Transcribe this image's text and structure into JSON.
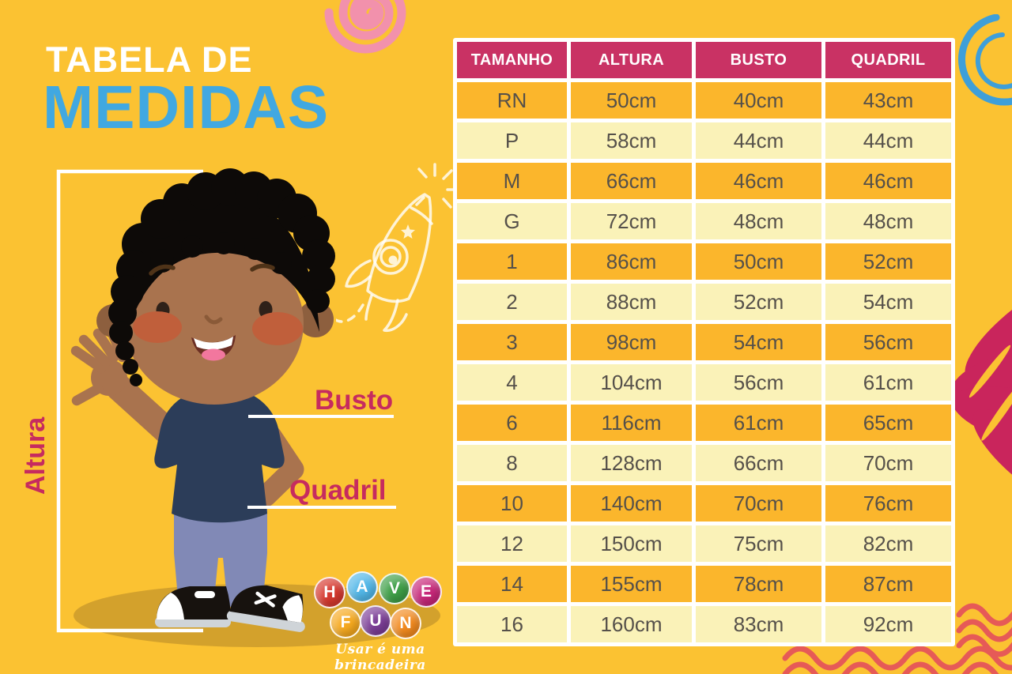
{
  "title": {
    "line1": "TABELA DE",
    "line2": "MEDIDAS"
  },
  "measure_labels": {
    "height": "Altura",
    "bust": "Busto",
    "hip": "Quadril"
  },
  "table": {
    "headers": [
      "TAMANHO",
      "ALTURA",
      "BUSTO",
      "QUADRIL"
    ],
    "rows": [
      [
        "RN",
        "50cm",
        "40cm",
        "43cm"
      ],
      [
        "P",
        "58cm",
        "44cm",
        "44cm"
      ],
      [
        "M",
        "66cm",
        "46cm",
        "46cm"
      ],
      [
        "G",
        "72cm",
        "48cm",
        "48cm"
      ],
      [
        "1",
        "86cm",
        "50cm",
        "52cm"
      ],
      [
        "2",
        "88cm",
        "52cm",
        "54cm"
      ],
      [
        "3",
        "98cm",
        "54cm",
        "56cm"
      ],
      [
        "4",
        "104cm",
        "56cm",
        "61cm"
      ],
      [
        "6",
        "116cm",
        "61cm",
        "65cm"
      ],
      [
        "8",
        "128cm",
        "66cm",
        "70cm"
      ],
      [
        "10",
        "140cm",
        "70cm",
        "76cm"
      ],
      [
        "12",
        "150cm",
        "75cm",
        "82cm"
      ],
      [
        "14",
        "155cm",
        "78cm",
        "87cm"
      ],
      [
        "16",
        "160cm",
        "83cm",
        "92cm"
      ]
    ]
  },
  "chart_data": {
    "type": "table",
    "title": "Tabela de Medidas",
    "columns": [
      "TAMANHO",
      "ALTURA",
      "BUSTO",
      "QUADRIL"
    ],
    "rows": [
      {
        "tamanho": "RN",
        "altura_cm": 50,
        "busto_cm": 40,
        "quadril_cm": 43
      },
      {
        "tamanho": "P",
        "altura_cm": 58,
        "busto_cm": 44,
        "quadril_cm": 44
      },
      {
        "tamanho": "M",
        "altura_cm": 66,
        "busto_cm": 46,
        "quadril_cm": 46
      },
      {
        "tamanho": "G",
        "altura_cm": 72,
        "busto_cm": 48,
        "quadril_cm": 48
      },
      {
        "tamanho": "1",
        "altura_cm": 86,
        "busto_cm": 50,
        "quadril_cm": 52
      },
      {
        "tamanho": "2",
        "altura_cm": 88,
        "busto_cm": 52,
        "quadril_cm": 54
      },
      {
        "tamanho": "3",
        "altura_cm": 98,
        "busto_cm": 54,
        "quadril_cm": 56
      },
      {
        "tamanho": "4",
        "altura_cm": 104,
        "busto_cm": 56,
        "quadril_cm": 61
      },
      {
        "tamanho": "6",
        "altura_cm": 116,
        "busto_cm": 61,
        "quadril_cm": 65
      },
      {
        "tamanho": "8",
        "altura_cm": 128,
        "busto_cm": 66,
        "quadril_cm": 70
      },
      {
        "tamanho": "10",
        "altura_cm": 140,
        "busto_cm": 70,
        "quadril_cm": 76
      },
      {
        "tamanho": "12",
        "altura_cm": 150,
        "busto_cm": 75,
        "quadril_cm": 82
      },
      {
        "tamanho": "14",
        "altura_cm": 155,
        "busto_cm": 78,
        "quadril_cm": 87
      },
      {
        "tamanho": "16",
        "altura_cm": 160,
        "busto_cm": 83,
        "quadril_cm": 92
      }
    ]
  },
  "logo": {
    "letters": [
      {
        "char": "H",
        "color": "#D6382E"
      },
      {
        "char": "A",
        "color": "#52B7E8"
      },
      {
        "char": "V",
        "color": "#3E9F47"
      },
      {
        "char": "E",
        "color": "#C72779"
      },
      {
        "char": "F",
        "color": "#F6A91F"
      },
      {
        "char": "U",
        "color": "#7C3E97"
      },
      {
        "char": "N",
        "color": "#F28A1F"
      }
    ],
    "tagline": "Usar é uma brincadeira"
  },
  "colors": {
    "background": "#FBC232",
    "table_header": "#C93264",
    "row_orange": "#FBB62C",
    "row_pale": "#FAF2B8",
    "title_blue": "#41A8E1",
    "accent_crimson": "#C62B5F",
    "wave_red": "#E65A57",
    "spiral_pink": "#F291AC",
    "doodle_blue": "#3E9FD9"
  }
}
